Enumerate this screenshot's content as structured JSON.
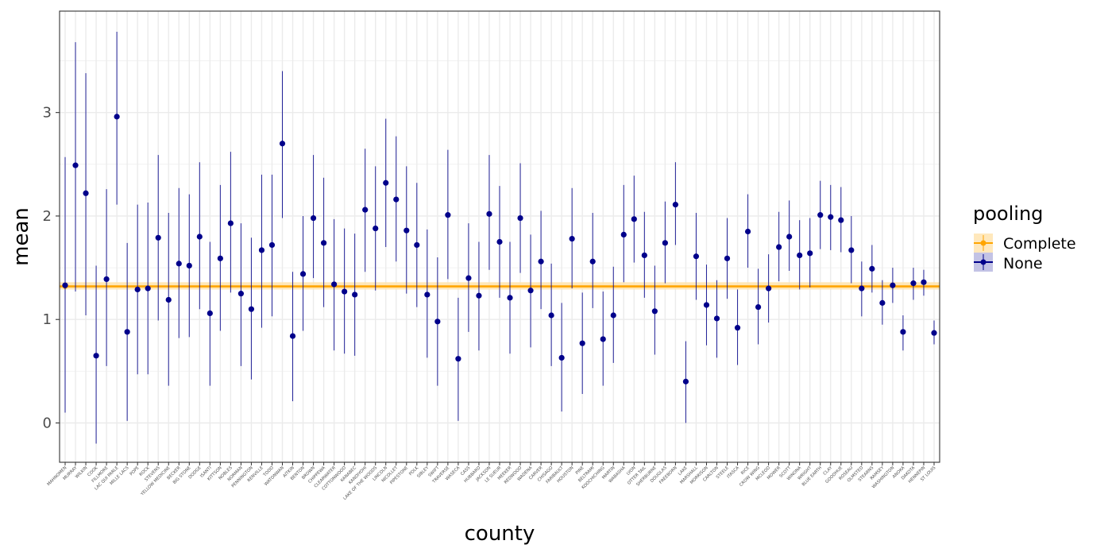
{
  "chart_data": {
    "type": "scatter",
    "xlabel": "county",
    "ylabel": "mean",
    "ylim": [
      -0.38,
      3.98
    ],
    "yticks": [
      0,
      1,
      2,
      3
    ],
    "grid": true,
    "legend": {
      "title": "pooling",
      "position": "right",
      "entries": [
        "Complete",
        "None"
      ]
    },
    "colors": {
      "Complete": "#FFA500",
      "Complete_band": "#FFE4B0",
      "None": "#00008B"
    },
    "categories": [
      "MAHNOMEN",
      "MURRAY",
      "WILKIN",
      "COOK",
      "FILLMORE",
      "LAC QUI PARLE",
      "MILLE LACS",
      "POPE",
      "ROCK",
      "STEVENS",
      "YELLOW MEDICINE",
      "BECKER",
      "BIG STONE",
      "DODGE",
      "ISANTI",
      "KITTSON",
      "NOBLES",
      "NORMAN",
      "PENNINGTON",
      "RENVILLE",
      "TODD",
      "WATONWAN",
      "AITKIN",
      "BENTON",
      "BROWN",
      "CHIPPEWA",
      "CLEARWATER",
      "COTTONWOOD",
      "KANABEC",
      "KANDIYOHI",
      "LAKE OF THE WOODS",
      "LINCOLN",
      "NICOLLET",
      "PIPESTONE",
      "POLK",
      "SIBLEY",
      "SWIFT",
      "TRAVERSE",
      "WASECA",
      "CASS",
      "HUBBARD",
      "JACKSON",
      "LE SUEUR",
      "MEEKER",
      "REDWOOD",
      "WADENA",
      "CARVER",
      "CHISAGO",
      "FARIBAULT",
      "HOUSTON",
      "PINE",
      "BELTRAMI",
      "KOOCHICHING",
      "MARTIN",
      "WABASHA",
      "LYON",
      "OTTER TAIL",
      "SHERBURNE",
      "DOUGLAS",
      "FREEBORN",
      "LAKE",
      "MARSHALL",
      "MORRISON",
      "CARLTON",
      "STEELE",
      "ITASCA",
      "RICE",
      "CROW WING",
      "MCLEOD",
      "MOWER",
      "SCOTT",
      "WINONA",
      "WRIGHT",
      "BLUE EARTH",
      "CLAY",
      "GOODHUE",
      "ROSEAU",
      "OLMSTED",
      "STEARNS",
      "RAMSEY",
      "WASHINGTON",
      "ANOKA",
      "DAKOTA",
      "HENNEPIN",
      "ST LOUIS"
    ],
    "series": [
      {
        "name": "Complete",
        "mean": 1.32,
        "lower": 1.29,
        "upper": 1.36
      },
      {
        "name": "None",
        "mean": [
          1.33,
          2.49,
          2.22,
          0.65,
          1.39,
          2.96,
          0.88,
          1.29,
          1.3,
          1.79,
          1.19,
          1.54,
          1.52,
          1.8,
          1.06,
          1.59,
          1.93,
          1.25,
          1.1,
          1.67,
          1.72,
          2.7,
          0.84,
          1.44,
          1.98,
          1.74,
          1.34,
          1.27,
          1.24,
          2.06,
          1.88,
          2.32,
          2.16,
          1.86,
          1.72,
          1.24,
          0.98,
          2.01,
          0.62,
          1.4,
          1.23,
          2.02,
          1.75,
          1.21,
          1.98,
          1.28,
          1.56,
          1.04,
          0.63,
          1.78,
          0.77,
          1.56,
          0.81,
          1.04,
          1.82,
          1.97,
          1.62,
          1.08,
          1.74,
          2.11,
          0.4,
          1.61,
          1.14,
          1.01,
          1.59,
          0.92,
          1.85,
          1.12,
          1.3,
          1.7,
          1.8,
          1.62,
          1.64,
          2.01,
          1.99,
          1.96,
          1.67,
          1.3,
          1.49,
          1.16,
          1.33,
          0.88,
          1.35,
          1.36,
          0.87
        ],
        "lower": [
          0.1,
          1.27,
          1.04,
          -0.2,
          0.55,
          2.11,
          0.02,
          0.47,
          0.47,
          0.99,
          0.36,
          0.82,
          0.83,
          1.1,
          0.36,
          0.89,
          1.26,
          0.55,
          0.42,
          0.92,
          1.03,
          1.98,
          0.21,
          0.89,
          1.4,
          1.12,
          0.7,
          0.67,
          0.65,
          1.46,
          1.28,
          1.7,
          1.56,
          1.25,
          1.12,
          0.63,
          0.36,
          1.39,
          0.02,
          0.88,
          0.7,
          1.48,
          1.21,
          0.67,
          1.45,
          0.73,
          1.1,
          0.55,
          0.11,
          1.3,
          0.28,
          1.11,
          0.36,
          0.58,
          1.36,
          1.55,
          1.21,
          0.66,
          1.35,
          1.72,
          0.0,
          1.19,
          0.75,
          0.63,
          1.2,
          0.56,
          1.5,
          0.76,
          0.97,
          1.37,
          1.47,
          1.29,
          1.31,
          1.68,
          1.67,
          1.65,
          1.35,
          1.03,
          1.26,
          0.95,
          1.16,
          0.7,
          1.19,
          1.23,
          0.76
        ],
        "upper": [
          2.57,
          3.68,
          3.38,
          1.52,
          2.26,
          3.78,
          1.74,
          2.11,
          2.13,
          2.59,
          2.03,
          2.27,
          2.21,
          2.52,
          1.75,
          2.3,
          2.62,
          1.93,
          1.79,
          2.4,
          2.4,
          3.4,
          1.46,
          2.0,
          2.59,
          2.37,
          1.97,
          1.88,
          1.83,
          2.65,
          2.48,
          2.94,
          2.77,
          2.48,
          2.32,
          1.87,
          1.6,
          2.64,
          1.21,
          1.93,
          1.75,
          2.59,
          2.29,
          1.75,
          2.51,
          1.82,
          2.05,
          1.54,
          1.16,
          2.27,
          1.26,
          2.03,
          1.27,
          1.51,
          2.3,
          2.39,
          2.04,
          1.52,
          2.14,
          2.52,
          0.79,
          2.03,
          1.53,
          1.38,
          1.98,
          1.29,
          2.21,
          1.49,
          1.63,
          2.04,
          2.15,
          1.96,
          1.98,
          2.34,
          2.3,
          2.28,
          2.0,
          1.56,
          1.72,
          1.38,
          1.5,
          1.04,
          1.5,
          1.48,
          0.99
        ]
      }
    ]
  }
}
